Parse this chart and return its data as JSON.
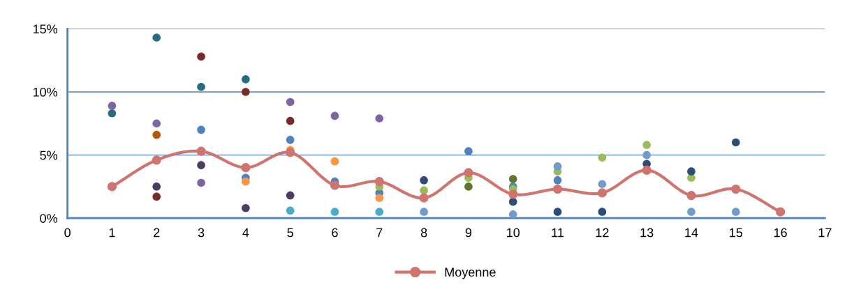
{
  "chart_data": {
    "type": "scatter",
    "xlim": [
      0,
      17
    ],
    "xticks": [
      0,
      1,
      2,
      3,
      4,
      5,
      6,
      7,
      8,
      9,
      10,
      11,
      12,
      13,
      14,
      15,
      16,
      17
    ],
    "ylim": [
      0,
      15
    ],
    "yticks": [
      {
        "value": 0,
        "label": "0%"
      },
      {
        "value": 5,
        "label": "5%"
      },
      {
        "value": 10,
        "label": "10%"
      },
      {
        "value": 15,
        "label": "15%"
      }
    ],
    "grid": "y",
    "legend": "bottom",
    "marker": "circle",
    "series": [
      {
        "color": "#246d7c",
        "x": [
          1,
          2,
          3,
          4
        ],
        "values": [
          8.3,
          14.3,
          10.4,
          11.0
        ]
      },
      {
        "color": "#8064a2",
        "x": [
          1,
          2,
          3,
          5,
          6,
          7
        ],
        "values": [
          8.9,
          7.5,
          2.8,
          9.2,
          8.1,
          7.9
        ]
      },
      {
        "color": "#772c2a",
        "x": [
          2,
          3,
          4,
          5
        ],
        "values": [
          1.7,
          12.8,
          10.0,
          7.7
        ]
      },
      {
        "color": "#b65708",
        "x": [
          2
        ],
        "values": [
          6.6
        ]
      },
      {
        "color": "#4e3b62",
        "x": [
          2,
          3,
          4,
          5
        ],
        "values": [
          2.5,
          4.2,
          0.8,
          1.8
        ]
      },
      {
        "color": "#4f81bd",
        "x": [
          3,
          4,
          5,
          6,
          7,
          9,
          10,
          11
        ],
        "values": [
          7.0,
          3.2,
          6.2,
          2.9,
          2.0,
          5.3,
          2.5,
          3.0
        ]
      },
      {
        "color": "#f79646",
        "x": [
          4,
          5,
          6,
          7
        ],
        "values": [
          2.9,
          5.4,
          4.5,
          1.6
        ]
      },
      {
        "color": "#4bacc6",
        "x": [
          5,
          6,
          7
        ],
        "values": [
          0.6,
          0.5,
          0.5
        ]
      },
      {
        "color": "#9bbb59",
        "x": [
          7,
          8,
          9,
          10,
          11,
          12,
          13,
          14
        ],
        "values": [
          2.5,
          2.2,
          3.2,
          2.3,
          3.7,
          4.8,
          5.8,
          3.2
        ]
      },
      {
        "color": "#2c4d75",
        "x": [
          8,
          10,
          11,
          12,
          13,
          14,
          15
        ],
        "values": [
          3.0,
          1.3,
          0.5,
          0.5,
          4.3,
          3.7,
          6.0
        ]
      },
      {
        "color": "#729aca",
        "x": [
          8,
          10,
          11,
          12,
          13,
          14,
          15
        ],
        "values": [
          0.5,
          0.3,
          4.1,
          2.7,
          5.0,
          0.5,
          0.5
        ]
      },
      {
        "color": "#5f7530",
        "x": [
          9,
          10
        ],
        "values": [
          2.5,
          3.1
        ]
      },
      {
        "type": "line",
        "name": "Moyenne",
        "color": "#d07470",
        "x": [
          1,
          2,
          3,
          4,
          5,
          6,
          7,
          8,
          9,
          10,
          11,
          12,
          13,
          14,
          15,
          16
        ],
        "values": [
          2.5,
          4.6,
          5.3,
          4.0,
          5.2,
          2.6,
          2.9,
          1.6,
          3.6,
          1.9,
          2.3,
          2.0,
          3.8,
          1.8,
          2.3,
          0.5
        ]
      }
    ]
  }
}
